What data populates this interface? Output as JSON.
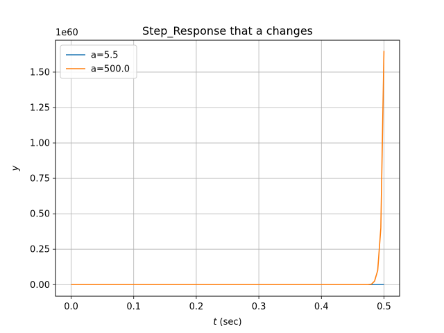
{
  "chart_data": {
    "type": "line",
    "title": "Step_Response that a changes",
    "xlabel_var": "t",
    "xlabel_unit": "(sec)",
    "ylabel": "y",
    "y_offset_text": "1e60",
    "xlim": [
      -0.025,
      0.525
    ],
    "ylim": [
      -0.082,
      1.725
    ],
    "x_ticks": [
      0.0,
      0.1,
      0.2,
      0.3,
      0.4,
      0.5
    ],
    "x_tick_labels": [
      "0.0",
      "0.1",
      "0.2",
      "0.3",
      "0.4",
      "0.5"
    ],
    "y_ticks": [
      0.0,
      0.25,
      0.5,
      0.75,
      1.0,
      1.25,
      1.5
    ],
    "y_tick_labels": [
      "0.00",
      "0.25",
      "0.50",
      "0.75",
      "1.00",
      "1.25",
      "1.50"
    ],
    "grid": true,
    "legend_position": "top-left",
    "series": [
      {
        "name": "a=5.5",
        "color": "#1f77b4",
        "x": [
          0.0,
          0.1,
          0.2,
          0.3,
          0.4,
          0.5
        ],
        "y": [
          0,
          0,
          0,
          0,
          0,
          0
        ]
      },
      {
        "name": "a=500.0",
        "color": "#ff7f0e",
        "x": [
          0.0,
          0.1,
          0.2,
          0.3,
          0.4,
          0.47,
          0.475,
          0.48,
          0.485,
          0.49,
          0.495,
          0.5
        ],
        "y": [
          0,
          0,
          0,
          0,
          0,
          0,
          0.0005,
          0.003,
          0.025,
          0.1,
          0.4,
          1.65
        ]
      }
    ]
  }
}
